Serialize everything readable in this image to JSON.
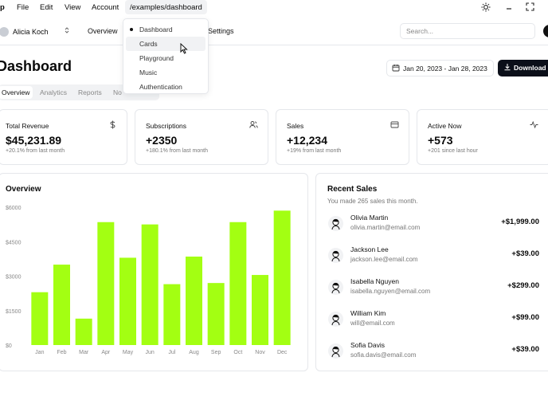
{
  "menubar": {
    "app": "p",
    "items": [
      "File",
      "Edit",
      "View",
      "Account"
    ],
    "path": "/examples/dashboard"
  },
  "nav": {
    "team": "Alicia Koch",
    "links": [
      "Overview",
      "Settings"
    ],
    "search_placeholder": "Search..."
  },
  "dropdown": {
    "items": [
      "Dashboard",
      "Cards",
      "Playground",
      "Music",
      "Authentication"
    ],
    "selected": "Dashboard",
    "hovered": "Cards"
  },
  "page": {
    "title": "Dashboard",
    "date_range": "Jan 20, 2023 - Jan 28, 2023",
    "download_label": "Download"
  },
  "tabs": [
    "Overview",
    "Analytics",
    "Reports",
    "No"
  ],
  "stats": [
    {
      "label": "Total Revenue",
      "value": "$45,231.89",
      "sub": "+20.1% from last month",
      "icon": "dollar-icon"
    },
    {
      "label": "Subscriptions",
      "value": "+2350",
      "sub": "+180.1% from last month",
      "icon": "users-icon"
    },
    {
      "label": "Sales",
      "value": "+12,234",
      "sub": "+19% from last month",
      "icon": "credit-card-icon"
    },
    {
      "label": "Active Now",
      "value": "+573",
      "sub": "+201 since last hour",
      "icon": "activity-icon"
    }
  ],
  "overview": {
    "title": "Overview"
  },
  "recent_sales": {
    "title": "Recent Sales",
    "subtitle": "You made 265 sales this month.",
    "items": [
      {
        "name": "Olivia Martin",
        "email": "olivia.martin@email.com",
        "amount": "+$1,999.00"
      },
      {
        "name": "Jackson Lee",
        "email": "jackson.lee@email.com",
        "amount": "+$39.00"
      },
      {
        "name": "Isabella Nguyen",
        "email": "isabella.nguyen@email.com",
        "amount": "+$299.00"
      },
      {
        "name": "William Kim",
        "email": "will@email.com",
        "amount": "+$99.00"
      },
      {
        "name": "Sofia Davis",
        "email": "sofia.davis@email.com",
        "amount": "+$39.00"
      }
    ]
  },
  "chart_data": {
    "type": "bar",
    "title": "Overview",
    "categories": [
      "Jan",
      "Feb",
      "Mar",
      "Apr",
      "May",
      "Jun",
      "Jul",
      "Aug",
      "Sep",
      "Oct",
      "Nov",
      "Dec"
    ],
    "values": [
      2300,
      3500,
      1150,
      5350,
      3800,
      5250,
      2650,
      3850,
      2700,
      5350,
      3050,
      5850
    ],
    "yticks": [
      "$0",
      "$1500",
      "$3000",
      "$4500",
      "$6000"
    ],
    "ylim": [
      0,
      6000
    ],
    "color": "#a3ff12",
    "xlabel": "",
    "ylabel": ""
  },
  "colors": {
    "accent": "#0b0f19",
    "bar": "#a3ff12"
  }
}
